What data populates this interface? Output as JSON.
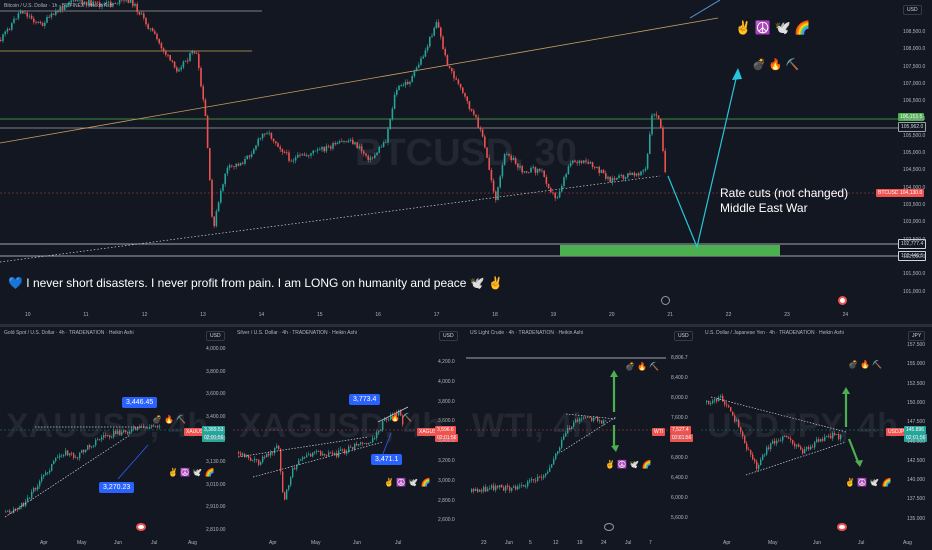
{
  "colors": {
    "background": "#131722",
    "up": "#26a69a",
    "down": "#ef5350",
    "accent": "#2962ff",
    "green_zone": "#4caf50",
    "teal_arrow": "#26c6da",
    "orange_line": "#c8a060"
  },
  "main": {
    "title": "Bitcoin / U.S. Dollar · 1h · BITFINEX · Heikin Ashi",
    "watermark": "BTCUSD, 30",
    "currency": "USD",
    "price_axis": [
      "108,500.0",
      "108,000.0",
      "107,500.0",
      "107,000.0",
      "106,500.0",
      "106,000.0",
      "105,500.0",
      "105,000.0",
      "104,500.0",
      "104,000.0",
      "103,500.0",
      "103,000.0",
      "102,500.0",
      "102,000.0",
      "101,500.0",
      "101,000.0"
    ],
    "tags": {
      "level_1": "106,153.5",
      "level_2": "105,962.0",
      "symbol": "BTCUSD",
      "current": "104,130.0",
      "level_3": "102,777.4",
      "level_4": "102,446.5"
    },
    "date_axis": [
      "10",
      "11",
      "12",
      "13",
      "14",
      "15",
      "16",
      "17",
      "18",
      "19",
      "20",
      "21",
      "22",
      "23",
      "24"
    ],
    "note_line1": "Rate cuts (not changed)",
    "note_line2": "Middle East War",
    "emoji_row1": "✌️ ☮️ 🕊️ 🌈",
    "emoji_row2": "💣 🔥 ⛏️",
    "message": "💙 I never short disasters. I never profit from pain. I am LONG on humanity and peace 🕊️ ✌️"
  },
  "panes": [
    {
      "title": "Gold Spot / U.S. Dollar · 4h · TRADENATION · Heikin Ashi",
      "watermark": "XAUUSD, 4h",
      "currency": "USD",
      "price_axis": [
        "4,000.00",
        "3,800.00",
        "3,600.00",
        "3,400.00",
        "3,250.00",
        "3,130.00",
        "3,010.00",
        "2,910.00",
        "2,810.00"
      ],
      "symbol_tag": "XAUUSD",
      "price_tag": "3,389.53",
      "time_tag": "02:01:56",
      "callout_top": "3,446.45",
      "callout_bottom": "3,270.23",
      "date_axis": [
        "Apr",
        "May",
        "Jun",
        "Jul",
        "Aug"
      ],
      "emoji_top": "💣 🔥 ⛏️",
      "emoji_bottom": "✌️ ☮️ 🕊️ 🌈"
    },
    {
      "title": "Silver / U.S. Dollar · 4h · TRADENATION · Heikin Ashi",
      "watermark": "XAGUSD, 4h",
      "currency": "USD",
      "price_axis": [
        "4,200.0",
        "4,000.0",
        "3,800.0",
        "3,600.0",
        "3,400.0",
        "3,200.0",
        "3,000.0",
        "2,800.0",
        "2,600.0"
      ],
      "symbol_tag": "XAGUSD",
      "price_tag": "3,596.6",
      "time_tag": "02:01:56",
      "callout_top": "3,773.4",
      "callout_bottom": "3,471.1",
      "date_axis": [
        "Apr",
        "May",
        "Jun",
        "Jul"
      ],
      "emoji_top": "🔥 ⛏️",
      "emoji_bottom": "✌️ ☮️ 🕊️ 🌈"
    },
    {
      "title": "US Light Crude · 4h · TRADENATION · Heikin Ashi",
      "watermark": "WTI, 4h",
      "currency": "USD",
      "price_axis": [
        "8,806.7",
        "8,400.0",
        "8,000.0",
        "7,600.0",
        "7,200.0",
        "6,800.0",
        "6,400.0",
        "6,000.0",
        "5,600.0"
      ],
      "symbol_tag": "WTI",
      "price_tag": "7,527.4",
      "time_tag": "02:01:56",
      "date_axis": [
        "23",
        "Jun",
        "5",
        "12",
        "18",
        "24",
        "Jul",
        "7"
      ],
      "emoji_top": "💣 🔥 ⛏️",
      "emoji_bottom": "✌️ ☮️ 🕊️ 🌈"
    },
    {
      "title": "U.S. Dollar / Japanese Yen · 4h · TRADENATION · Heikin Ashi",
      "watermark": "USDJPY, 4h",
      "currency": "JPY",
      "price_axis": [
        "157.500",
        "155.000",
        "152.500",
        "150.000",
        "147.500",
        "145.000",
        "142.500",
        "140.000",
        "137.500",
        "135.000"
      ],
      "symbol_tag": "USDJPY",
      "price_tag": "145.896",
      "time_tag": "02:01:56",
      "date_axis": [
        "Apr",
        "May",
        "Jun",
        "Jul",
        "Aug"
      ],
      "emoji_top": "💣 🔥 ⛏️",
      "emoji_bottom": "✌️ ☮️ 🕊️ 🌈"
    }
  ]
}
